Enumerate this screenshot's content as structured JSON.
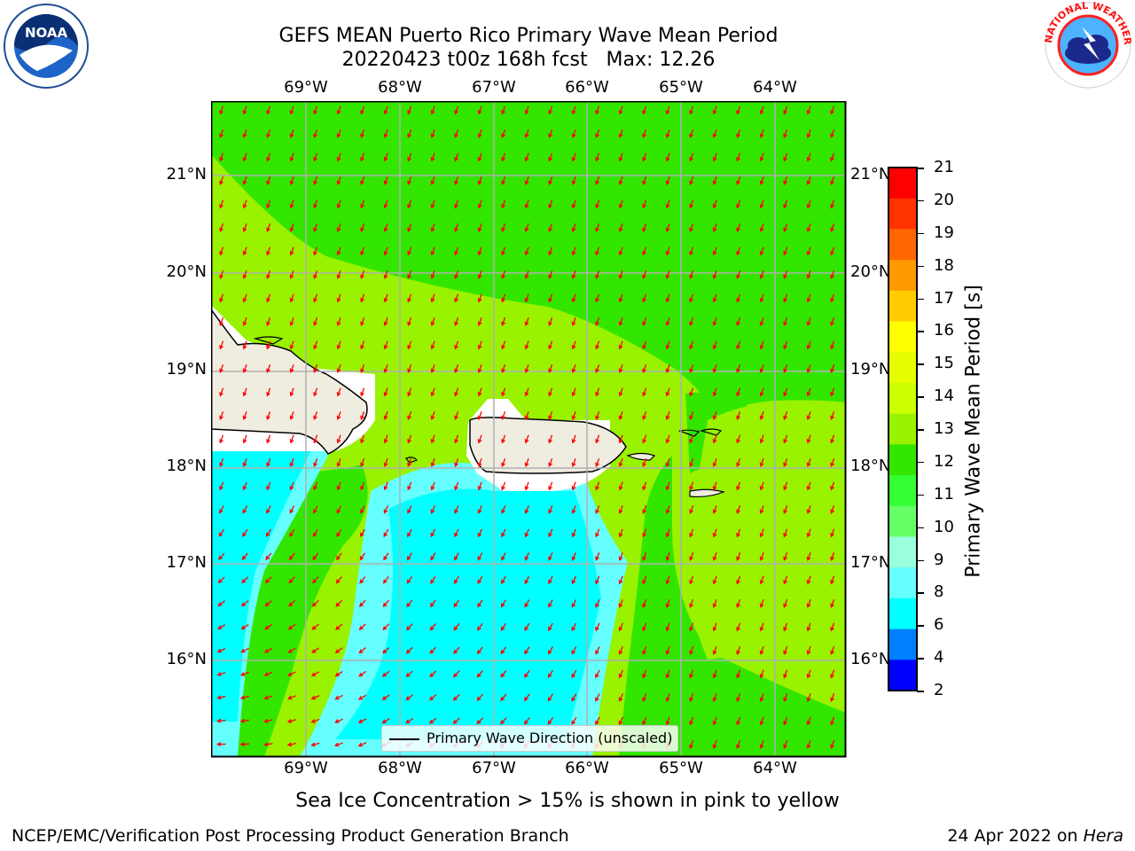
{
  "header": {
    "title_line1": "GEFS MEAN Puerto Rico Primary Wave Mean Period",
    "title_line2": "20220423 t00z 168h fcst   Max: 12.26"
  },
  "map": {
    "lon_labels": [
      "69°W",
      "68°W",
      "67°W",
      "66°W",
      "65°W",
      "64°W"
    ],
    "lat_labels": [
      "21°N",
      "20°N",
      "19°N",
      "18°N",
      "17°N",
      "16°N"
    ],
    "colors": {
      "ocean_green": "#33e600",
      "ocean_yellowgreen": "#99f200",
      "ocean_cyan": "#00ffff",
      "ocean_lightcyan": "#66ffff",
      "land": "#efede0",
      "arrow": "#ff0000",
      "grid": "#b0b0b0"
    },
    "legend_label": "Primary Wave Direction (unscaled)"
  },
  "colorbar": {
    "label": "Primary Wave Mean Period [s]",
    "ticks": [
      "21",
      "20",
      "19",
      "18",
      "17",
      "16",
      "15",
      "14",
      "13",
      "12",
      "11",
      "10",
      "9",
      "8",
      "6",
      "4",
      "2"
    ],
    "colors_top_to_bottom": [
      "#ff0000",
      "#ff3300",
      "#ff6600",
      "#ff9900",
      "#ffcc00",
      "#ffff00",
      "#e6ff00",
      "#ccff00",
      "#99f200",
      "#33e600",
      "#33ff33",
      "#66ff66",
      "#99ffdd",
      "#66ffff",
      "#00ffff",
      "#0080ff",
      "#0000ff"
    ]
  },
  "footer": {
    "note": "Sea Ice Concentration > 15% is shown in pink to yellow",
    "left": "NCEP/EMC/Verification Post Processing Product Generation Branch",
    "right_prefix": "24 Apr 2022 on ",
    "right_host": "Hera"
  },
  "logos": {
    "noaa_text": "NOAA",
    "nws_text": "NATIONAL WEATHER SERVICE"
  }
}
